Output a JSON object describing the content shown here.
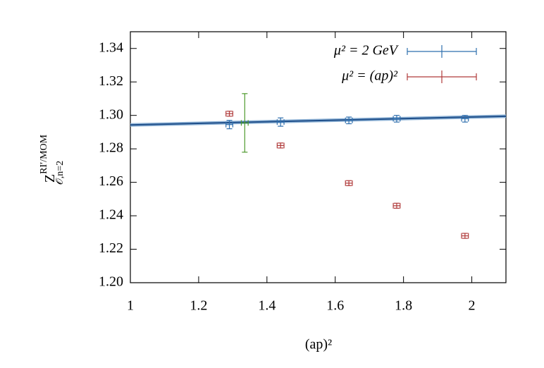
{
  "chart_data": {
    "type": "errorbar",
    "x_label": "(ap)²",
    "y_label": {
      "base": "Z",
      "sup": "RI′/MOM",
      "sub": "𝒪,n=2"
    },
    "xlim": [
      1,
      2.1
    ],
    "xticks": [
      1,
      1.2,
      1.4,
      1.6,
      1.8,
      2
    ],
    "ylim": [
      1.2,
      1.35
    ],
    "yticks": [
      {
        "value": 1.2,
        "label": "1.20"
      },
      {
        "value": 1.22,
        "label": "1.22"
      },
      {
        "value": 1.24,
        "label": "1.24"
      },
      {
        "value": 1.26,
        "label": "1.26"
      },
      {
        "value": 1.28,
        "label": "1.28"
      },
      {
        "value": 1.3,
        "label": "1.30"
      },
      {
        "value": 1.32,
        "label": "1.32"
      },
      {
        "value": 1.34,
        "label": "1.34"
      }
    ],
    "legend": "upper right",
    "series": [
      {
        "name": "μ² = 2 GeV",
        "color": "#2f6fae",
        "x": [
          1.29,
          1.44,
          1.64,
          1.78,
          1.98
        ],
        "values": [
          1.2945,
          1.296,
          1.297,
          1.298,
          1.298
        ],
        "xerr": [
          0.01,
          0.01,
          0.01,
          0.01,
          0.01
        ],
        "yerr": [
          0.0025,
          0.0025,
          0.002,
          0.002,
          0.002
        ]
      },
      {
        "name": "μ² = (ap)²",
        "color": "#b03a3a",
        "x": [
          1.29,
          1.44,
          1.64,
          1.78,
          1.98
        ],
        "values": [
          1.301,
          1.282,
          1.2595,
          1.246,
          1.228
        ],
        "xerr": [
          0.01,
          0.01,
          0.01,
          0.01,
          0.01
        ],
        "yerr": [
          0.0015,
          0.0015,
          0.0015,
          0.0015,
          0.0015
        ]
      },
      {
        "color": "#4e9a2e",
        "x": [
          1.335
        ],
        "values": [
          1.2955
        ],
        "xerr": [
          0.01
        ],
        "yerr": [
          0.0175
        ]
      }
    ],
    "fit": {
      "color": "#1f4f8a",
      "x": [
        1,
        2.1
      ],
      "values": [
        1.2943,
        1.2995
      ]
    }
  }
}
